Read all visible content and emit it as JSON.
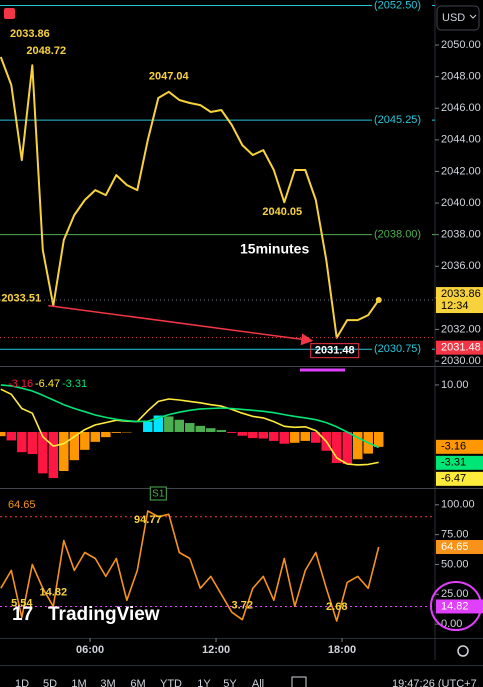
{
  "toolbar": {
    "currency": "USD",
    "brand": "TradingView",
    "ranges": [
      "1D",
      "5D",
      "1M",
      "3M",
      "6M",
      "YTD",
      "1Y",
      "5Y",
      "All"
    ],
    "clock": "19:47:26 (UTC+7"
  },
  "chart_data": [
    {
      "type": "line",
      "title": "15minutes",
      "x": [
        1.75,
        2.25,
        2.75,
        3.25,
        3.75,
        4.25,
        4.75,
        5.25,
        5.75,
        6.25,
        6.75,
        7.25,
        7.75,
        8.25,
        8.75,
        9.25,
        9.75,
        10.25,
        10.75,
        11.25,
        11.75,
        12.25,
        12.75,
        13.25,
        13.75,
        14.25,
        14.75,
        15.25,
        15.75,
        16.25,
        16.75,
        17.25,
        17.75,
        18.25,
        18.75,
        19.25,
        19.75
      ],
      "values": [
        2049.24,
        2047.47,
        2042.72,
        2048.72,
        2037.03,
        2033.51,
        2037.66,
        2039.24,
        2040.19,
        2040.82,
        2040.5,
        2041.77,
        2041.14,
        2040.82,
        2043.99,
        2046.65,
        2047.04,
        2046.52,
        2046.33,
        2046.2,
        2045.76,
        2045.89,
        2044.94,
        2043.67,
        2043.04,
        2043.35,
        2042.09,
        2040.05,
        2042.09,
        2042.09,
        2040.19,
        2036.39,
        2031.48,
        2032.59,
        2032.59,
        2032.91,
        2033.86
      ],
      "color": "#f7d23d",
      "xlim": [
        1.71,
        22.43
      ],
      "ylim": [
        2029.75,
        2052.85
      ],
      "yticks": [
        {
          "value": 2030,
          "label": "2030.00"
        },
        {
          "value": 2032,
          "label": "2032.00"
        },
        {
          "value": 2034,
          "label": "2034.00"
        },
        {
          "value": 2036,
          "label": "2036.00"
        },
        {
          "value": 2038,
          "label": "2038.00"
        },
        {
          "value": 2040,
          "label": "2040.00"
        },
        {
          "value": 2042,
          "label": "2042.00"
        },
        {
          "value": 2044,
          "label": "2044.00"
        },
        {
          "value": 2046,
          "label": "2046.00"
        },
        {
          "value": 2048,
          "label": "2048.00"
        },
        {
          "value": 2050,
          "label": "2050.00"
        }
      ],
      "levels": [
        {
          "value": 2052.5,
          "label": "(2052.50)",
          "color": "#26c6da"
        },
        {
          "value": 2045.25,
          "label": "(2045.25)",
          "color": "#26c6da"
        },
        {
          "value": 2038,
          "label": "(2038.00)",
          "color": "#4caf50"
        },
        {
          "value": 2030.75,
          "label": "(2030.75)",
          "color": "#26c6da"
        }
      ],
      "annotations": [
        {
          "x": 3.25,
          "value": 2048.72
        },
        {
          "x": 9.75,
          "value": 2047.04
        },
        {
          "x": 15.25,
          "value": 2040.05
        },
        {
          "x": 4.25,
          "value": 2033.51
        },
        {
          "x": 17.75,
          "value": 2031.48
        }
      ],
      "countdown": "12:34",
      "marker": {
        "value": 2031.48,
        "color": "#f23645"
      }
    },
    {
      "type": "macd",
      "x": [
        1.75,
        2.25,
        2.75,
        3.25,
        3.75,
        4.25,
        4.75,
        5.25,
        5.75,
        6.25,
        6.75,
        7.25,
        7.75,
        8.25,
        8.75,
        9.25,
        9.75,
        10.25,
        10.75,
        11.25,
        11.75,
        12.25,
        12.75,
        13.25,
        13.75,
        14.25,
        14.75,
        15.25,
        15.75,
        16.25,
        16.75,
        17.25,
        17.75,
        18.25,
        18.75,
        19.25,
        19.75
      ],
      "xlim": [
        1.71,
        22.43
      ],
      "ylim": [
        -11.7,
        13.6
      ],
      "yticks": [
        {
          "value": 10,
          "label": "10.00"
        }
      ],
      "histogram_colors": [
        "#00e5ff",
        "#4caf50",
        "#ff9800",
        "#ff1744"
      ],
      "series": [
        {
          "style": "histogram",
          "color": "#ff9800",
          "values": [
            -0.9,
            -1.8,
            -4.3,
            -4.7,
            -8.8,
            -9.8,
            -8.3,
            -6,
            -3.8,
            -2.1,
            -1.1,
            -0.2,
            -0.1,
            0,
            2.2,
            3.5,
            3.3,
            2.6,
            1.9,
            1.3,
            0.8,
            0.4,
            -0.2,
            -0.8,
            -1.3,
            -1.4,
            -1.9,
            -2.5,
            -2.3,
            -1.9,
            -2.3,
            -4,
            -6.6,
            -6.8,
            -5.8,
            -4.6,
            -3.16
          ]
        },
        {
          "style": "line",
          "color": "#ffeb3b",
          "values": [
            9.1,
            8,
            5,
            4,
            -1,
            -3,
            -2.5,
            -1,
            0.5,
            1.5,
            2,
            2.5,
            2.3,
            2.2,
            4.5,
            6.5,
            7,
            6.8,
            6.5,
            6.2,
            5.8,
            5.5,
            4.8,
            4,
            3.3,
            3,
            2.2,
            1.2,
            1,
            1.1,
            0.3,
            -2,
            -5.5,
            -6.8,
            -7,
            -6.9,
            -6.47
          ]
        },
        {
          "style": "line",
          "color": "#00e676",
          "values": [
            10,
            9.8,
            9.3,
            8.7,
            7.8,
            6.8,
            5.8,
            5,
            4.3,
            3.6,
            3.1,
            2.7,
            2.4,
            2.2,
            2.3,
            3,
            3.7,
            4.2,
            4.6,
            4.9,
            5,
            5.1,
            5,
            4.8,
            4.6,
            4.4,
            4.1,
            3.7,
            3.3,
            3,
            2.6,
            2,
            1.1,
            0,
            -1.2,
            -2.3,
            -3.31
          ]
        }
      ]
    },
    {
      "type": "line",
      "x": [
        1.75,
        2.25,
        2.75,
        3.25,
        3.75,
        4.25,
        4.75,
        5.25,
        5.75,
        6.25,
        6.75,
        7.25,
        7.75,
        8.25,
        8.75,
        9.25,
        9.75,
        10.25,
        10.75,
        11.25,
        11.75,
        12.25,
        12.75,
        13.25,
        13.75,
        14.25,
        14.75,
        15.25,
        15.75,
        16.25,
        16.75,
        17.25,
        17.75,
        18.25,
        18.75,
        19.25,
        19.75
      ],
      "values": [
        30,
        45,
        5.54,
        50,
        30,
        14.82,
        70,
        45,
        60,
        55,
        40,
        55,
        20,
        45,
        94.77,
        90,
        92,
        60,
        55,
        30,
        40,
        25,
        10,
        3.72,
        30,
        40,
        20,
        55,
        15,
        45,
        60,
        30,
        2.68,
        35,
        40,
        30,
        64.65
      ],
      "color": "#f7931a",
      "xlim": [
        1.71,
        22.43
      ],
      "ylim": [
        -11.6,
        112.4
      ],
      "yticks": [
        {
          "value": 0,
          "label": "0.00"
        },
        {
          "value": 25,
          "label": "25.00"
        },
        {
          "value": 50,
          "label": "50.00"
        },
        {
          "value": 75,
          "label": "75.00"
        },
        {
          "value": 100,
          "label": "100.00"
        }
      ],
      "xticks": [
        {
          "value": 6,
          "label": "06:00"
        },
        {
          "value": 12,
          "label": "12:00"
        },
        {
          "value": 18,
          "label": "18:00"
        }
      ],
      "levels": [
        {
          "value": 90,
          "color": "#f23645"
        },
        {
          "value": 14.82,
          "color": "#e040fb"
        }
      ],
      "annotations": [
        {
          "x": 2.75,
          "value": 5.54
        },
        {
          "x": 4.25,
          "value": 14.82
        },
        {
          "x": 8.75,
          "value": 94.77
        },
        {
          "x": 13.25,
          "value": 3.72
        },
        {
          "x": 17.75,
          "value": 2.68
        }
      ],
      "signals": [
        {
          "x": 9.25,
          "label": "S1"
        }
      ]
    }
  ]
}
